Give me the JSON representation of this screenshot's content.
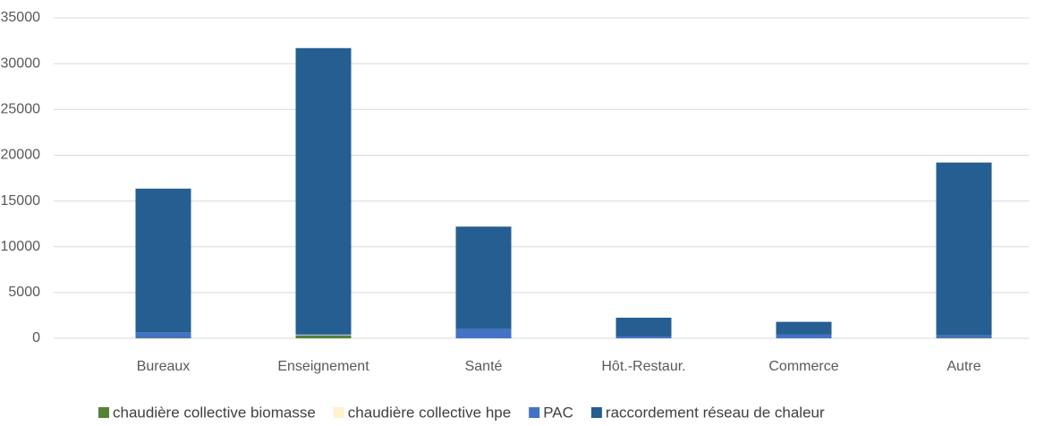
{
  "chart_data": {
    "type": "stacked_bar",
    "categories": [
      "Bureaux",
      "Enseignement",
      "Santé",
      "Hôt.-Restaur.",
      "Commerce",
      "Autre"
    ],
    "series": [
      {
        "name": "chaudière collective biomasse",
        "color": "#548235",
        "values": [
          50,
          300,
          0,
          0,
          0,
          50
        ]
      },
      {
        "name": "chaudière collective hpe",
        "color": "#fff2cc",
        "values": [
          0,
          50,
          0,
          0,
          0,
          0
        ]
      },
      {
        "name": "PAC",
        "color": "#4472c4",
        "values": [
          600,
          100,
          1000,
          200,
          400,
          300
        ]
      },
      {
        "name": "raccordement réseau de chaleur",
        "color": "#255e91",
        "values": [
          15700,
          31250,
          11200,
          2050,
          1400,
          18850
        ]
      }
    ],
    "ylim": [
      0,
      35000
    ],
    "yticks": [
      0,
      5000,
      10000,
      15000,
      20000,
      25000,
      30000,
      35000
    ],
    "grid": true,
    "legend": "bottom"
  }
}
